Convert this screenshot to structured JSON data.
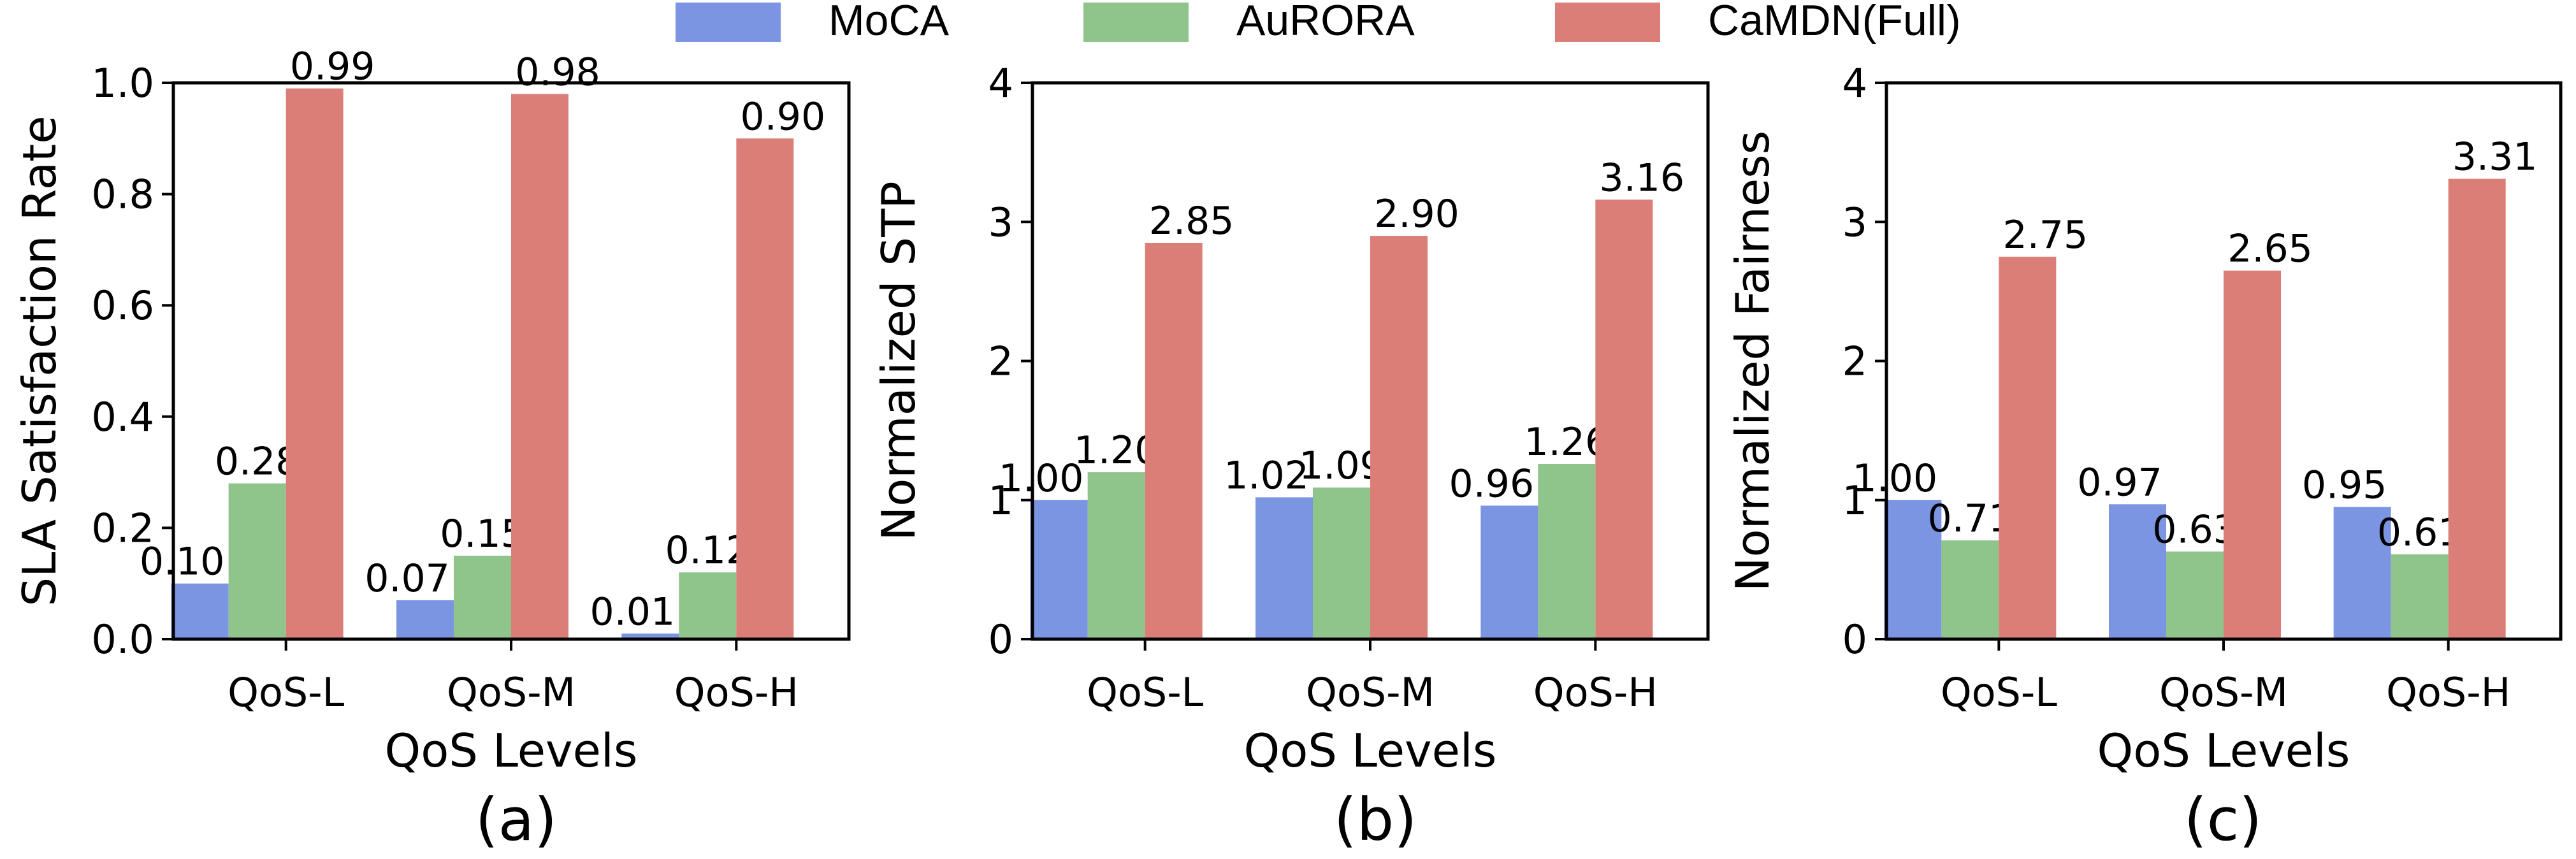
{
  "legend": [
    {
      "name": "MoCA",
      "color": "#7b95e3"
    },
    {
      "name": "AuRORA",
      "color": "#8fc48b"
    },
    {
      "name": "CaMDN(Full)",
      "color": "#dc7e78"
    }
  ],
  "chart_data": [
    {
      "type": "bar",
      "caption": "(a)",
      "xlabel": "QoS Levels",
      "ylabel": "SLA Satisfaction Rate",
      "ylim": [
        0,
        1.0
      ],
      "yticks": [
        "0.0",
        "0.2",
        "0.4",
        "0.6",
        "0.8",
        "1.0"
      ],
      "ytick_values": [
        0,
        0.2,
        0.4,
        0.6,
        0.8,
        1.0
      ],
      "categories": [
        "QoS-L",
        "QoS-M",
        "QoS-H"
      ],
      "series": [
        {
          "name": "MoCA",
          "values": [
            0.1,
            0.07,
            0.01
          ],
          "labels": [
            "0.10",
            "0.07",
            "0.01"
          ]
        },
        {
          "name": "AuRORA",
          "values": [
            0.28,
            0.15,
            0.12
          ],
          "labels": [
            "0.28",
            "0.15",
            "0.12"
          ]
        },
        {
          "name": "CaMDN(Full)",
          "values": [
            0.99,
            0.98,
            0.9
          ],
          "labels": [
            "0.99",
            "0.98",
            "0.90"
          ]
        }
      ]
    },
    {
      "type": "bar",
      "caption": "(b)",
      "xlabel": "QoS Levels",
      "ylabel": "Normalized STP",
      "ylim": [
        0,
        4
      ],
      "yticks": [
        "0",
        "1",
        "2",
        "3",
        "4"
      ],
      "ytick_values": [
        0,
        1,
        2,
        3,
        4
      ],
      "categories": [
        "QoS-L",
        "QoS-M",
        "QoS-H"
      ],
      "series": [
        {
          "name": "MoCA",
          "values": [
            1.0,
            1.02,
            0.96
          ],
          "labels": [
            "1.00",
            "1.02",
            "0.96"
          ]
        },
        {
          "name": "AuRORA",
          "values": [
            1.2,
            1.09,
            1.26
          ],
          "labels": [
            "1.20",
            "1.09",
            "1.26"
          ]
        },
        {
          "name": "CaMDN(Full)",
          "values": [
            2.85,
            2.9,
            3.16
          ],
          "labels": [
            "2.85",
            "2.90",
            "3.16"
          ]
        }
      ]
    },
    {
      "type": "bar",
      "caption": "(c)",
      "xlabel": "QoS Levels",
      "ylabel": "Normalized Fairness",
      "ylim": [
        0,
        4
      ],
      "yticks": [
        "0",
        "1",
        "2",
        "3",
        "4"
      ],
      "ytick_values": [
        0,
        1,
        2,
        3,
        4
      ],
      "categories": [
        "QoS-L",
        "QoS-M",
        "QoS-H"
      ],
      "series": [
        {
          "name": "MoCA",
          "values": [
            1.0,
            0.97,
            0.95
          ],
          "labels": [
            "1.00",
            "0.97",
            "0.95"
          ]
        },
        {
          "name": "AuRORA",
          "values": [
            0.71,
            0.63,
            0.61
          ],
          "labels": [
            "0.71",
            "0.63",
            "0.61"
          ]
        },
        {
          "name": "CaMDN(Full)",
          "values": [
            2.75,
            2.65,
            3.31
          ],
          "labels": [
            "2.75",
            "2.65",
            "3.31"
          ]
        }
      ]
    }
  ]
}
